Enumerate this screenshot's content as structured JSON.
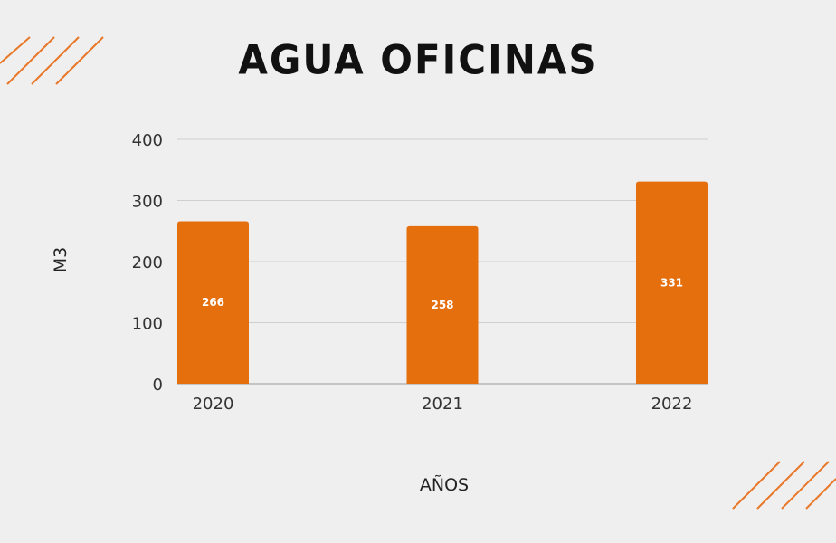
{
  "title": "AGUA OFICINAS",
  "colors": {
    "background": "#efefef",
    "bar": "#e56e0d",
    "accent_stripes": "#e8782a",
    "grid": "#cfcfcf"
  },
  "chart_data": {
    "type": "bar",
    "title": "AGUA OFICINAS",
    "categories": [
      "2020",
      "2021",
      "2022"
    ],
    "values": [
      266,
      258,
      331
    ],
    "data_labels": [
      "266",
      "258",
      "331"
    ],
    "xlabel": "AÑOS",
    "ylabel": "M3",
    "ylim": [
      0,
      400
    ],
    "yticks": [
      "0",
      "100",
      "200",
      "300",
      "400"
    ],
    "grid": true,
    "legend": "none"
  }
}
